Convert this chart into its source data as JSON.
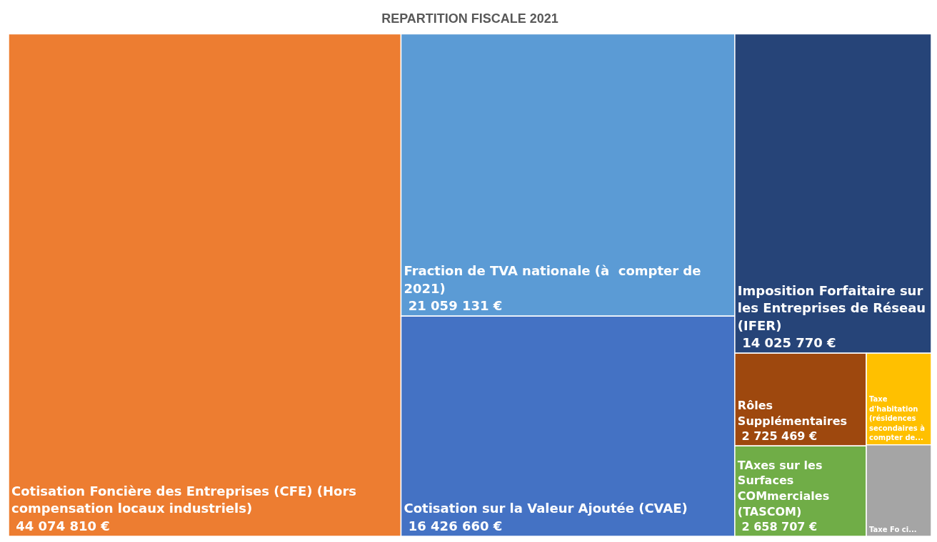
{
  "chart_data": {
    "type": "other",
    "title": "REPARTITION FISCALE 2021",
    "categories": [
      "Cotisation Foncière des Entreprises (CFE) (Hors compensation locaux industriels)",
      "Fraction de TVA nationale (à  compter de 2021)",
      "Cotisation sur la Valeur Ajoutée (CVAE)",
      "Imposition Forfaitaire sur les Entreprises de Réseau (IFER)",
      "Rôles Supplémentaires",
      "TAxes sur les Surfaces COMmerciales (TASCOM)",
      "Taxe d'habitation (résidences secondaires à compter de...",
      "Taxe Fo ci..."
    ],
    "values": [
      44074810,
      21059131,
      16426660,
      14025770,
      2725469,
      2658707,
      null,
      null
    ],
    "value_labels": [
      "44 074 810 €",
      "21 059 131 €",
      "16 426 660 €",
      "14 025 770 €",
      "2 725 469 €",
      "2 658 707 €",
      null,
      null
    ],
    "colors": [
      "#ed7d31",
      "#5b9bd5",
      "#4472c4",
      "#264478",
      "#9e480e",
      "#70ad47",
      "#ffc000",
      "#a5a5a5"
    ]
  }
}
